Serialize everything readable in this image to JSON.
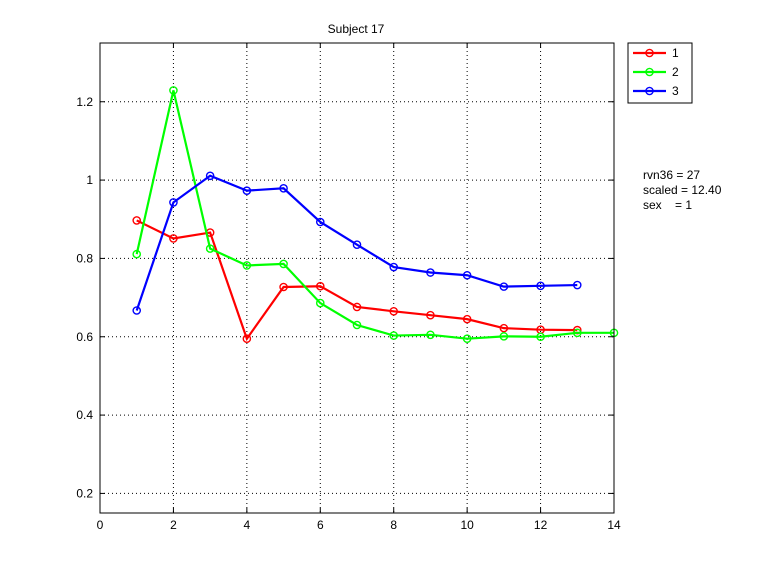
{
  "chart_data": {
    "type": "line",
    "title": "Subject 17",
    "xlabel": "",
    "ylabel": "",
    "xlim": [
      0,
      14
    ],
    "ylim": [
      0.15,
      1.35
    ],
    "xticks": [
      0,
      2,
      4,
      6,
      8,
      10,
      12,
      14
    ],
    "yticks": [
      0.2,
      0.4,
      0.6,
      0.8,
      1,
      1.2
    ],
    "grid": true,
    "legend_position": "outside-top-right",
    "marker": "circle",
    "series": [
      {
        "name": "1",
        "color": "#ff0000",
        "x": [
          1,
          2,
          3,
          4,
          5,
          6,
          7,
          8,
          9,
          10,
          11,
          12,
          13
        ],
        "y": [
          0.897,
          0.851,
          0.866,
          0.595,
          0.727,
          0.729,
          0.676,
          0.665,
          0.655,
          0.645,
          0.622,
          0.618,
          0.617
        ]
      },
      {
        "name": "2",
        "color": "#00ff00",
        "x": [
          1,
          2,
          3,
          4,
          5,
          6,
          7,
          8,
          9,
          10,
          11,
          12,
          13,
          14
        ],
        "y": [
          0.811,
          1.229,
          0.825,
          0.782,
          0.786,
          0.686,
          0.63,
          0.603,
          0.605,
          0.595,
          0.601,
          0.6,
          0.61,
          0.61
        ]
      },
      {
        "name": "3",
        "color": "#0000ff",
        "x": [
          1,
          2,
          3,
          4,
          5,
          6,
          7,
          8,
          9,
          10,
          11,
          12,
          13
        ],
        "y": [
          0.667,
          0.943,
          1.011,
          0.973,
          0.979,
          0.893,
          0.835,
          0.778,
          0.764,
          0.757,
          0.728,
          0.73,
          0.732
        ]
      }
    ],
    "annotations": [
      "rvn36 = 27",
      "scaled = 12.40",
      "sex    = 1"
    ]
  }
}
